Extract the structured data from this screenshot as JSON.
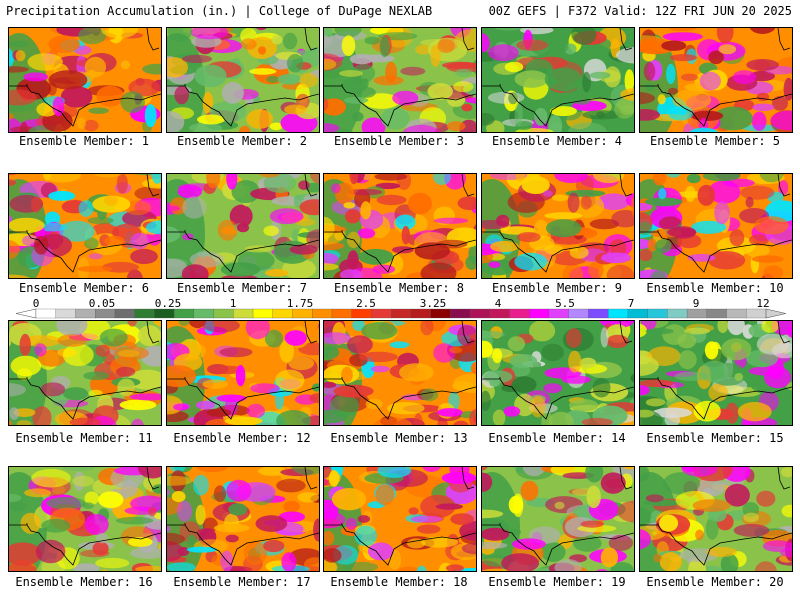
{
  "header": {
    "left": "Precipitation Accumulation (in.) | College of DuPage NEXLAB",
    "right": "00Z GEFS | F372 Valid: 12Z FRI JUN 20 2025"
  },
  "panels": [
    {
      "label": "Ensemble Member: 1",
      "theme": "wet"
    },
    {
      "label": "Ensemble Member: 2",
      "theme": "mixed"
    },
    {
      "label": "Ensemble Member: 3",
      "theme": "mixed"
    },
    {
      "label": "Ensemble Member: 4",
      "theme": "dry"
    },
    {
      "label": "Ensemble Member: 5",
      "theme": "wet"
    },
    {
      "label": "Ensemble Member: 6",
      "theme": "wet"
    },
    {
      "label": "Ensemble Member: 7",
      "theme": "mixed"
    },
    {
      "label": "Ensemble Member: 8",
      "theme": "wet"
    },
    {
      "label": "Ensemble Member: 9",
      "theme": "wet"
    },
    {
      "label": "Ensemble Member: 10",
      "theme": "wet"
    },
    {
      "label": "Ensemble Member: 11",
      "theme": "mixed"
    },
    {
      "label": "Ensemble Member: 12",
      "theme": "wet"
    },
    {
      "label": "Ensemble Member: 13",
      "theme": "wet"
    },
    {
      "label": "Ensemble Member: 14",
      "theme": "dry"
    },
    {
      "label": "Ensemble Member: 15",
      "theme": "dry"
    },
    {
      "label": "Ensemble Member: 16",
      "theme": "mixed"
    },
    {
      "label": "Ensemble Member: 17",
      "theme": "wet"
    },
    {
      "label": "Ensemble Member: 18",
      "theme": "wet"
    },
    {
      "label": "Ensemble Member: 19",
      "theme": "mixed"
    },
    {
      "label": "Ensemble Member: 20",
      "theme": "mixed"
    }
  ],
  "colorbar": {
    "colors": [
      "#ffffff",
      "#d9d9d9",
      "#b0b0b0",
      "#8c8c8c",
      "#6e6e6e",
      "#2e7d32",
      "#1b5e20",
      "#43a047",
      "#66bb6a",
      "#8bc34a",
      "#cddc39",
      "#ffff00",
      "#ffd600",
      "#ffb300",
      "#ff8f00",
      "#ff6f00",
      "#ff3d00",
      "#e53935",
      "#c62828",
      "#b71c1c",
      "#8b0000",
      "#880e4f",
      "#ad1457",
      "#c2185b",
      "#e91e8c",
      "#ff00ff",
      "#e040fb",
      "#b388ff",
      "#7c4dff",
      "#00e5ff",
      "#00bcd4",
      "#26c6da",
      "#80cbc4",
      "#a0a0a0",
      "#888888",
      "#b8b8b8",
      "#d0d0d0"
    ],
    "ticks": [
      "0",
      "0.05",
      "0.25",
      "1",
      "1.75",
      "2.5",
      "3.25",
      "4",
      "5.5",
      "7",
      "9",
      "12"
    ]
  }
}
